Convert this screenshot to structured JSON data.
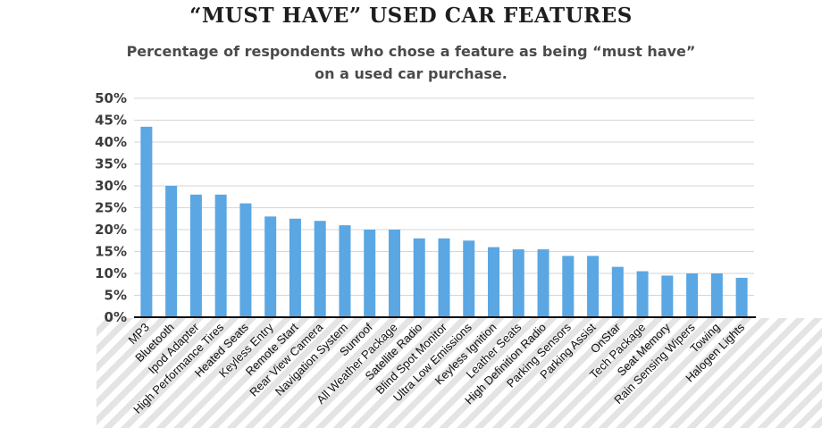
{
  "chart_data": {
    "type": "bar",
    "title": "“MUST HAVE” USED CAR FEATURES",
    "subtitle": [
      "Percentage of respondents who chose a feature as being “must have”",
      "on a used car purchase."
    ],
    "xlabel": "",
    "ylabel": "",
    "ylim": [
      0,
      50
    ],
    "yticks": [
      0,
      5,
      10,
      15,
      20,
      25,
      30,
      35,
      40,
      45,
      50
    ],
    "ytick_labels": [
      "0%",
      "5%",
      "10%",
      "15%",
      "20%",
      "25%",
      "30%",
      "35%",
      "40%",
      "45%",
      "50%"
    ],
    "grid": true,
    "categories": [
      "MP3",
      "Bluetooth",
      "Ipod Adapter",
      "High Performance Tires",
      "Heated Seats",
      "Keyless Entry",
      "Remote Start",
      "Rear View Camera",
      "Navigation System",
      "Sunroof",
      "All Weather Package",
      "Satellite Radio",
      "Blind Spot Monitor",
      "Ultra Low Emissions",
      "Keyless Ignition",
      "Leather Seats",
      "High Definition Radio",
      "Parking Sensors",
      "Parking Assist",
      "OnStar",
      "Tech Package",
      "Seat Memory",
      "Rain Sensing Wipers",
      "Towing",
      "Halogen Lights"
    ],
    "values": [
      43.5,
      30,
      28,
      28,
      26,
      23,
      22.5,
      22,
      21,
      20,
      20,
      18,
      18,
      17.5,
      16,
      15.5,
      15.5,
      14,
      14,
      11.5,
      10.5,
      9.5,
      10,
      10,
      9
    ],
    "bar_color": "#5aa7e3",
    "grid_color": "#d6d6d6",
    "axis_color": "#111111",
    "stripe_color": "#e4e4e4"
  }
}
